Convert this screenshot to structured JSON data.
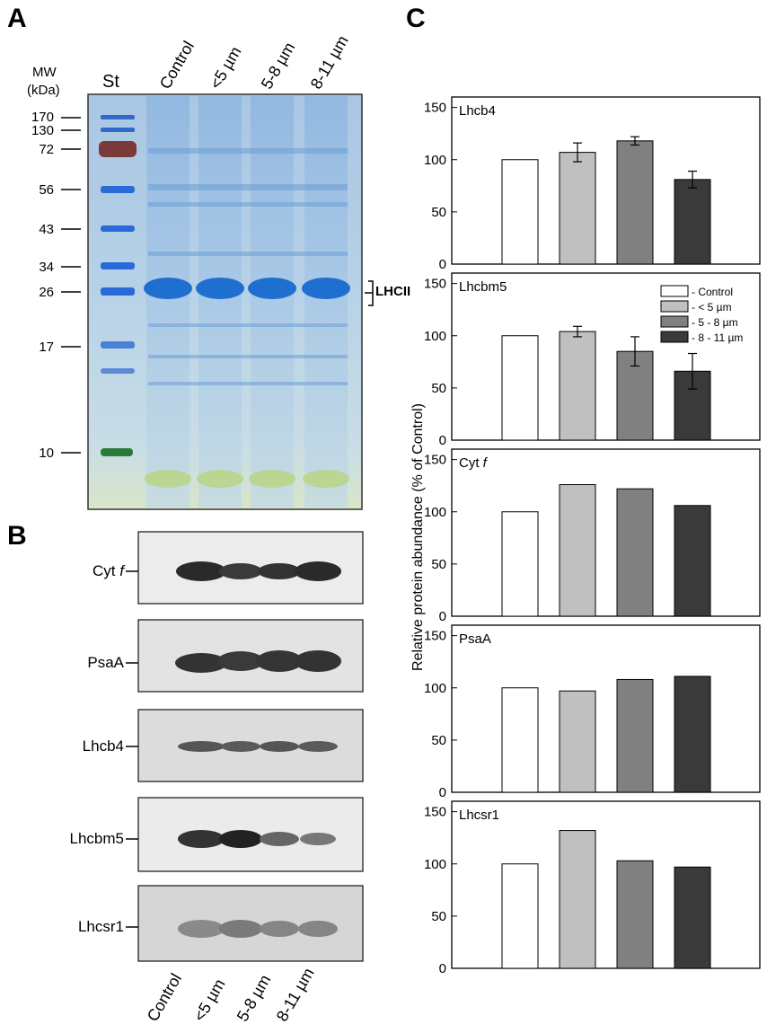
{
  "panels": {
    "a": "A",
    "b": "B",
    "c": "C"
  },
  "gel": {
    "mw_header_1": "MW",
    "mw_header_2": "(kDa)",
    "st_label": "St",
    "lane_labels": [
      "Control",
      "<5 µm",
      "5-8 µm",
      "8-11 µm"
    ],
    "mw_markers": [
      "170",
      "130",
      "72",
      "56",
      "43",
      "34",
      "26",
      "17",
      "10"
    ],
    "band_annotation": "LHCII"
  },
  "blots": {
    "rows": [
      {
        "label": "Cyt ",
        "label_italic": "f"
      },
      {
        "label": "PsaA",
        "label_italic": ""
      },
      {
        "label": "Lhcb4",
        "label_italic": ""
      },
      {
        "label": "Lhcbm5",
        "label_italic": ""
      },
      {
        "label": "Lhcsr1",
        "label_italic": ""
      }
    ],
    "lane_labels": [
      "Control",
      "<5 µm",
      "5-8 µm",
      "8-11 µm"
    ]
  },
  "chart_data": {
    "type": "bar",
    "ylabel": "Relative protein abundance (% of Control)",
    "categories": [
      "Control",
      "< 5 µm",
      "5 - 8 µm",
      "8 - 11 µm"
    ],
    "colors": [
      "#ffffff",
      "#c0c0c0",
      "#808080",
      "#3a3a3a"
    ],
    "ylim": [
      0,
      160
    ],
    "yticks": [
      0,
      50,
      100,
      150
    ],
    "legend": {
      "location": "Lhcbm5 panel, top-right",
      "entries": [
        "- Control",
        "- < 5 µm",
        "- 5 - 8 µm",
        "- 8 - 11 µm"
      ]
    },
    "subplots": [
      {
        "title": "Lhcb4",
        "values": [
          100,
          107,
          118,
          81
        ],
        "errors": [
          0,
          9,
          4,
          8
        ]
      },
      {
        "title": "Lhcbm5",
        "values": [
          100,
          104,
          85,
          66
        ],
        "errors": [
          0,
          5,
          14,
          17
        ]
      },
      {
        "title": "Cyt ",
        "title_italic": "f",
        "values": [
          100,
          126,
          122,
          106
        ]
      },
      {
        "title": "PsaA",
        "values": [
          100,
          97,
          108,
          111
        ]
      },
      {
        "title": "Lhcsr1",
        "values": [
          100,
          132,
          103,
          97
        ]
      }
    ]
  }
}
